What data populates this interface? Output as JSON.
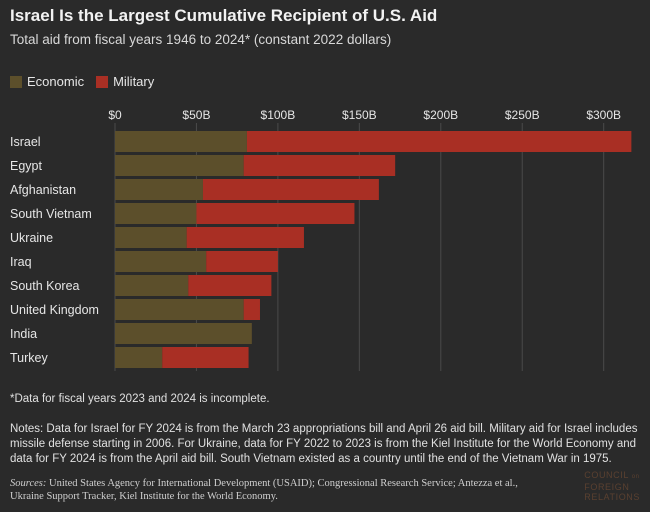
{
  "header": {
    "title": "Israel Is the Largest Cumulative Recipient of U.S. Aid",
    "subtitle": "Total aid from fiscal years 1946 to 2024* (constant 2022 dollars)"
  },
  "colors": {
    "economic": "#5c4f2b",
    "military": "#a92f24",
    "background": "#2a2a2a",
    "gridline": "#4a4a4a",
    "logo": "#5a4030"
  },
  "chart_data": {
    "type": "bar",
    "orientation": "horizontal",
    "stacked": true,
    "legend_position": "top-left",
    "grid": true,
    "categories": [
      "Israel",
      "Egypt",
      "Afghanistan",
      "South Vietnam",
      "Ukraine",
      "Iraq",
      "South Korea",
      "United Kingdom",
      "India",
      "Turkey"
    ],
    "series": [
      {
        "name": "Economic",
        "values": [
          81,
          79,
          54,
          50,
          44,
          56,
          45,
          79,
          84,
          29
        ]
      },
      {
        "name": "Military",
        "values": [
          236,
          93,
          108,
          97,
          72,
          44,
          51,
          10,
          0,
          53
        ]
      }
    ],
    "xlim": [
      0,
      318
    ],
    "ticks": [
      0,
      50,
      100,
      150,
      200,
      250,
      300
    ],
    "tick_labels": [
      "$0",
      "$50B",
      "$100B",
      "$150B",
      "$200B",
      "$250B",
      "$300B"
    ],
    "unit": "billion USD (constant 2022 dollars)"
  },
  "footnote": "*Data for fiscal years 2023 and 2024 is incomplete.",
  "notes": "Notes: Data for Israel for FY 2024 is from the March 23 appropriations bill and April 26 aid bill. Military aid for Israel includes missile defense starting in 2006. For Ukraine, data for FY 2022 to 2023 is from the Kiel Institute for the World Economy and data for FY 2024 is from the April aid bill. South Vietnam existed as a country until the end of the Vietnam War in 1975.",
  "sources": {
    "label": "Sources:",
    "text": "United States Agency for International Development (USAID); Congressional Research Service; Antezza et al., Ukraine Support Tracker, Kiel Institute for the World Economy."
  },
  "logo": {
    "line1": "COUNCIL",
    "line1_small": "on",
    "line2": "FOREIGN",
    "line3": "RELATIONS"
  }
}
